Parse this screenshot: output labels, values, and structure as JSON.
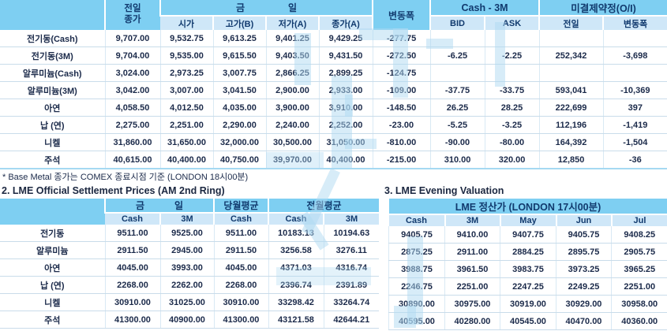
{
  "colors": {
    "header_blue": "#7ECFF2",
    "subheader_blue": "#CFE7F8",
    "text_navy": "#113A6E",
    "body_text": "#1B2A4A",
    "watermark_blue": "#B0D9F2"
  },
  "table1": {
    "headers": {
      "prev_line1": "전일",
      "prev_line2": "종가",
      "today_1": "금",
      "today_2": "일",
      "open": "시가",
      "high": "고가(B)",
      "low": "저가(A)",
      "close": "종가(A)",
      "change": "변동폭",
      "cash_3m": "Cash - 3M",
      "bid": "BID",
      "ask": "ASK",
      "oi": "미결제약정(O/I)",
      "oi_prev": "전일",
      "oi_change": "변동폭"
    },
    "rows": [
      {
        "label": "전기동(Cash)",
        "values": [
          "9,707.00",
          "9,532.75",
          "9,613.25",
          "9,401.25",
          "9,429.25",
          "-277.75",
          "",
          "",
          "",
          ""
        ]
      },
      {
        "label": "전기동(3M)",
        "values": [
          "9,704.00",
          "9,535.00",
          "9,615.50",
          "9,403.50",
          "9,431.50",
          "-272.50",
          "-6.25",
          "-2.25",
          "252,342",
          "-3,698"
        ]
      },
      {
        "label": "알루미늄(Cash)",
        "values": [
          "3,024.00",
          "2,973.25",
          "3,007.75",
          "2,866.25",
          "2,899.25",
          "-124.75",
          "",
          "",
          "",
          ""
        ]
      },
      {
        "label": "알루미늄(3M)",
        "values": [
          "3,042.00",
          "3,007.00",
          "3,041.50",
          "2,900.00",
          "2,933.00",
          "-109.00",
          "-37.75",
          "-33.75",
          "593,041",
          "-10,369"
        ]
      },
      {
        "label": "아연",
        "values": [
          "4,058.50",
          "4,012.50",
          "4,035.00",
          "3,900.00",
          "3,910.00",
          "-148.50",
          "26.25",
          "28.25",
          "222,699",
          "397"
        ]
      },
      {
        "label": "납 (연)",
        "values": [
          "2,275.00",
          "2,251.00",
          "2,290.00",
          "2,240.00",
          "2,252.00",
          "-23.00",
          "-5.25",
          "-3.25",
          "112,196",
          "-1,419"
        ]
      },
      {
        "label": "니켈",
        "values": [
          "31,860.00",
          "31,650.00",
          "32,000.00",
          "30,500.00",
          "31,050.00",
          "-810.00",
          "-90.00",
          "-80.00",
          "164,392",
          "-1,504"
        ]
      },
      {
        "label": "주석",
        "values": [
          "40,615.00",
          "40,400.00",
          "40,750.00",
          "39,970.00",
          "40,400.00",
          "-215.00",
          "310.00",
          "320.00",
          "12,850",
          "-36"
        ]
      }
    ]
  },
  "footnote": "* Base Metal 종가는 COMEX 종료시점 기준 (LONDON 18시00분)",
  "section2": {
    "title": "2. LME Official Settlement Prices (AM 2nd Ring)",
    "headers": {
      "today_1": "금",
      "today_2": "일",
      "cash": "Cash",
      "m3": "3M",
      "month_avg": "당월평균",
      "month_cash": "Cash",
      "prev_month_avg": "전월평균",
      "prev_cash": "Cash",
      "prev_m3": "3M"
    },
    "rows": [
      {
        "label": "전기동",
        "values": [
          "9511.00",
          "9525.00",
          "9511.00",
          "10183.13",
          "10194.63"
        ]
      },
      {
        "label": "알루미늄",
        "values": [
          "2911.50",
          "2945.00",
          "2911.50",
          "3256.58",
          "3276.11"
        ]
      },
      {
        "label": "아연",
        "values": [
          "4045.00",
          "3993.00",
          "4045.00",
          "4371.03",
          "4316.74"
        ]
      },
      {
        "label": "납 (연)",
        "values": [
          "2268.00",
          "2262.00",
          "2268.00",
          "2396.74",
          "2391.89"
        ]
      },
      {
        "label": "니켈",
        "values": [
          "30910.00",
          "31025.00",
          "30910.00",
          "33298.42",
          "33264.74"
        ]
      },
      {
        "label": "주석",
        "values": [
          "41300.00",
          "40900.00",
          "41300.00",
          "43121.58",
          "42644.21"
        ]
      }
    ]
  },
  "section3": {
    "title": "3. LME Evening Valuation",
    "headers": {
      "group": "LME 정산가 (LONDON 17시00분)",
      "cash": "Cash",
      "m3": "3M",
      "may": "May",
      "jun": "Jun",
      "jul": "Jul"
    },
    "rows": [
      {
        "values": [
          "9405.75",
          "9410.00",
          "9407.75",
          "9405.75",
          "9408.25"
        ]
      },
      {
        "values": [
          "2875.25",
          "2911.00",
          "2884.25",
          "2895.75",
          "2905.75"
        ]
      },
      {
        "values": [
          "3988.75",
          "3961.50",
          "3983.75",
          "3973.25",
          "3965.25"
        ]
      },
      {
        "values": [
          "2246.75",
          "2251.00",
          "2247.25",
          "2249.25",
          "2251.00"
        ]
      },
      {
        "values": [
          "30890.00",
          "30975.00",
          "30919.00",
          "30929.00",
          "30958.00"
        ]
      },
      {
        "values": [
          "40595.00",
          "40280.00",
          "40545.00",
          "40470.00",
          "40360.00"
        ]
      }
    ]
  }
}
